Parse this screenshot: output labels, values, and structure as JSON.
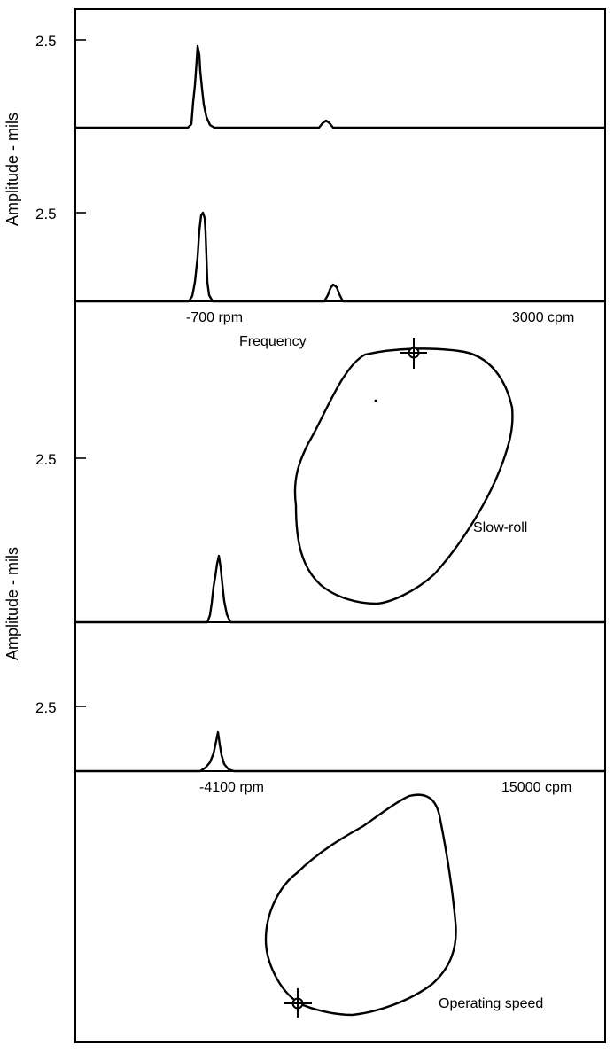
{
  "figure": {
    "y_axis_label": "Amplitude - mils",
    "panels": [
      {
        "id": "slow-roll",
        "ticks": [
          "2.5",
          "2.5",
          "2.5"
        ],
        "x_left_label": "-700 rpm",
        "x_right_label": "3000 cpm",
        "x_axis_label": "Frequency",
        "orbit_label": "Slow-roll"
      },
      {
        "id": "operating-speed",
        "ticks": [
          "2.5"
        ],
        "x_left_label": "-4100 rpm",
        "x_right_label": "15000 cpm",
        "orbit_label": "Operating speed"
      }
    ]
  }
}
